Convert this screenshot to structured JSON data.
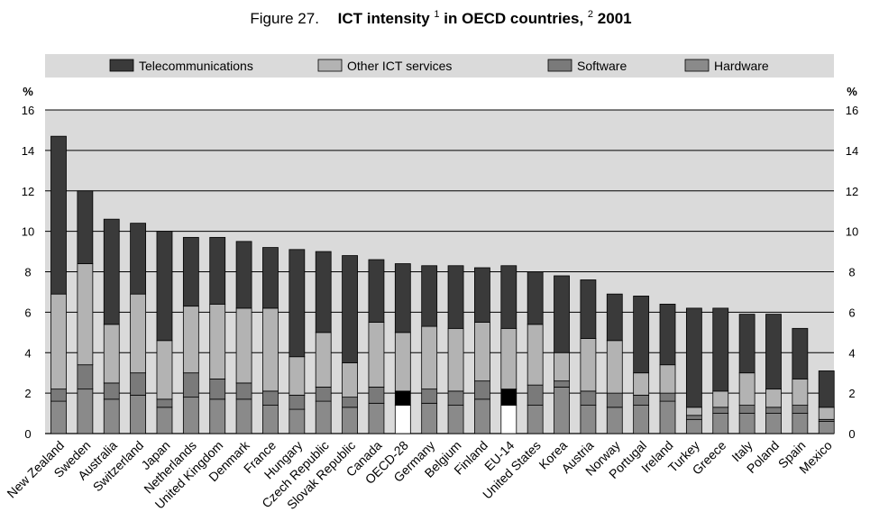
{
  "chart_data": {
    "type": "bar",
    "stacked": true,
    "title": {
      "prefix": "Figure 27.",
      "main": "ICT intensity",
      "sup1": "1",
      "mid": " in OECD countries,",
      "sup2": "2",
      "year": " 2001"
    },
    "ylabel_left": "%",
    "ylabel_right": "%",
    "ylim": [
      0,
      16
    ],
    "yticks": [
      "0",
      "2",
      "4",
      "6",
      "8",
      "10",
      "12",
      "14",
      "16"
    ],
    "grid": true,
    "legend_position": "top",
    "categories": [
      "New Zealand",
      "Sweden",
      "Australia",
      "Switzerland",
      "Japan",
      "Netherlands",
      "United Kingdom",
      "Denmark",
      "France",
      "Hungary",
      "Czech Republic",
      "Slovak Republic",
      "Canada",
      "OECD-28",
      "Germany",
      "Belgium",
      "Finland",
      "EU-14",
      "United States",
      "Korea",
      "Austria",
      "Norway",
      "Portugal",
      "Ireland",
      "Turkey",
      "Greece",
      "Italy",
      "Poland",
      "Spain",
      "Mexico"
    ],
    "highlight_categories": [
      "OECD-28",
      "EU-14"
    ],
    "series": [
      {
        "name": "Hardware",
        "color": "#8a8a8a",
        "values": [
          1.6,
          2.2,
          1.7,
          1.9,
          1.3,
          1.8,
          1.7,
          1.7,
          1.4,
          1.2,
          1.6,
          1.3,
          1.5,
          1.4,
          1.5,
          1.4,
          1.7,
          1.4,
          1.4,
          2.3,
          1.4,
          1.3,
          1.4,
          1.6,
          0.7,
          1.0,
          1.0,
          1.0,
          1.0,
          0.6
        ]
      },
      {
        "name": "Software",
        "color": "#7a7a7a",
        "values": [
          0.6,
          1.2,
          0.8,
          1.1,
          0.4,
          1.2,
          1.0,
          0.8,
          0.7,
          0.7,
          0.7,
          0.5,
          0.8,
          0.7,
          0.7,
          0.7,
          0.9,
          0.8,
          1.0,
          0.3,
          0.7,
          0.7,
          0.5,
          0.4,
          0.2,
          0.3,
          0.4,
          0.3,
          0.4,
          0.1
        ]
      },
      {
        "name": "Other ICT services",
        "color": "#b3b3b3",
        "values": [
          4.7,
          5.0,
          2.9,
          3.9,
          2.9,
          3.3,
          3.7,
          3.7,
          4.1,
          1.9,
          2.7,
          1.7,
          3.2,
          2.9,
          3.1,
          3.1,
          2.9,
          3.0,
          3.0,
          1.4,
          2.6,
          2.6,
          1.1,
          1.4,
          0.4,
          0.8,
          1.6,
          0.9,
          1.3,
          0.6
        ]
      },
      {
        "name": "Telecommunications",
        "color": "#3a3a3a",
        "values": [
          7.8,
          3.6,
          5.2,
          3.5,
          5.4,
          3.4,
          3.3,
          3.3,
          3.0,
          5.3,
          4.0,
          5.3,
          3.1,
          3.4,
          3.0,
          3.1,
          2.7,
          3.1,
          2.6,
          3.8,
          2.9,
          2.3,
          3.8,
          3.0,
          4.9,
          4.1,
          2.9,
          3.7,
          2.5,
          1.8
        ]
      }
    ],
    "legend": [
      "Telecommunications",
      "Other ICT services",
      "Software",
      "Hardware"
    ]
  }
}
